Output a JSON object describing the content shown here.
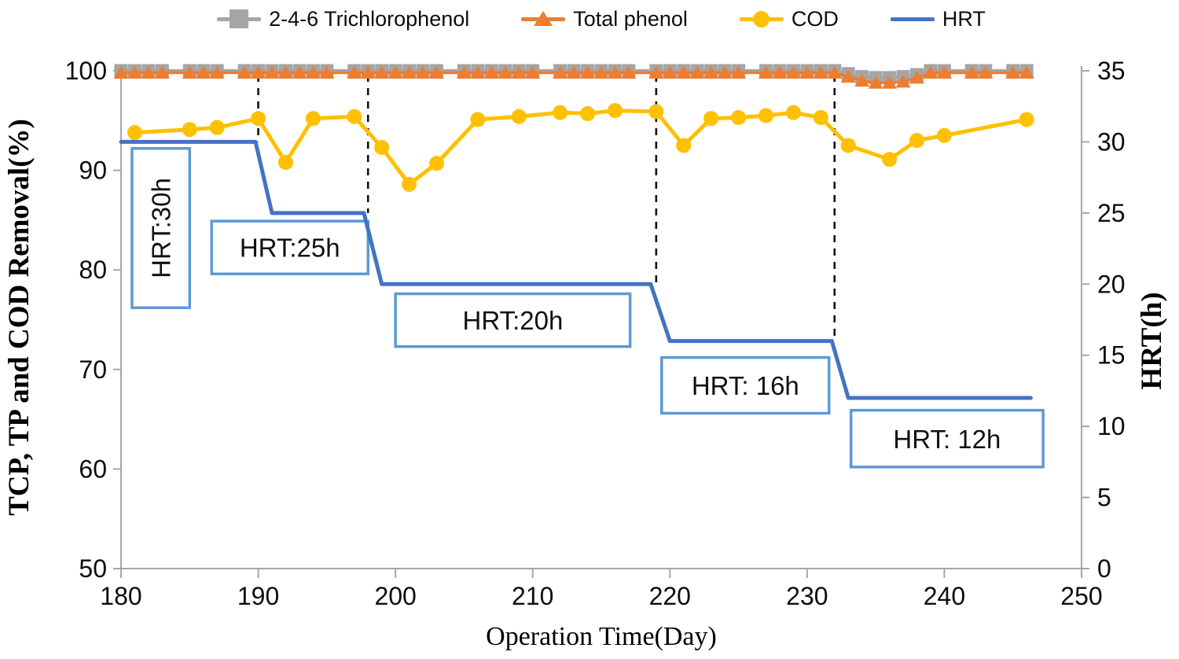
{
  "legend": {
    "items": [
      {
        "label": "2-4-6 Trichlorophenol",
        "marker": "square",
        "color": "#A5A5A5"
      },
      {
        "label": "Total phenol",
        "marker": "triangle",
        "color": "#ED7D31"
      },
      {
        "label": "COD",
        "marker": "circle",
        "color": "#FFC000"
      },
      {
        "label": "HRT",
        "marker": "line",
        "color": "#4472C4"
      }
    ]
  },
  "axes": {
    "left": {
      "title": "TCP, TP and COD Removal(%)",
      "ticks": [
        100,
        90,
        80,
        70,
        60,
        50
      ]
    },
    "right": {
      "title": "HRT(h)",
      "ticks": [
        35,
        30,
        25,
        20,
        15,
        10,
        5,
        0
      ]
    },
    "bottom": {
      "title": "Operation Time(Day)",
      "ticks": [
        180,
        190,
        200,
        210,
        220,
        230,
        240,
        250
      ]
    }
  },
  "chart_data": {
    "type": "line",
    "title": "",
    "xlabel": "Operation Time(Day)",
    "ylabel_left": "TCP, TP and COD Removal(%)",
    "ylabel_right": "HRT(h)",
    "xlim": [
      180,
      250
    ],
    "ylim_left": [
      50,
      100
    ],
    "ylim_right": [
      0,
      35
    ],
    "grid": false,
    "legend_position": "top",
    "series": [
      {
        "name": "2-4-6 Trichlorophenol",
        "color": "#A5A5A5",
        "marker": "square",
        "axis": "left",
        "x": [
          180,
          181,
          182,
          183,
          185,
          186,
          187,
          189,
          190,
          191,
          192,
          193,
          194,
          195,
          197,
          198,
          199,
          200,
          201,
          202,
          203,
          205,
          206,
          207,
          208,
          209,
          210,
          212,
          213,
          214,
          215,
          216,
          217,
          219,
          220,
          221,
          222,
          223,
          224,
          225,
          227,
          228,
          229,
          230,
          231,
          232,
          233,
          234,
          235,
          236,
          237,
          238,
          239,
          240,
          242,
          243,
          245,
          246
        ],
        "y": [
          100,
          100,
          100,
          100,
          100,
          100,
          100,
          100,
          100,
          100,
          100,
          100,
          100,
          100,
          100,
          100,
          100,
          100,
          100,
          100,
          100,
          100,
          100,
          100,
          100,
          100,
          100,
          100,
          100,
          100,
          100,
          100,
          100,
          100,
          100,
          100,
          100,
          100,
          100,
          100,
          100,
          100,
          100,
          100,
          100,
          100,
          99.7,
          99.4,
          99.3,
          99.3,
          99.4,
          99.6,
          100,
          100,
          100,
          100,
          100,
          100
        ]
      },
      {
        "name": "Total phenol",
        "color": "#ED7D31",
        "marker": "triangle",
        "axis": "left",
        "x": [
          180,
          181,
          182,
          183,
          185,
          186,
          187,
          189,
          190,
          191,
          192,
          193,
          194,
          195,
          197,
          198,
          199,
          200,
          201,
          202,
          203,
          205,
          206,
          207,
          208,
          209,
          210,
          212,
          213,
          214,
          215,
          216,
          217,
          219,
          220,
          221,
          222,
          223,
          224,
          225,
          227,
          228,
          229,
          230,
          231,
          232,
          233,
          234,
          235,
          236,
          237,
          238,
          239,
          240,
          242,
          243,
          245,
          246
        ],
        "y": [
          99.8,
          99.8,
          99.8,
          99.8,
          99.8,
          99.8,
          99.8,
          99.8,
          99.8,
          99.8,
          99.8,
          99.8,
          99.8,
          99.8,
          99.8,
          99.8,
          99.8,
          99.8,
          99.8,
          99.8,
          99.8,
          99.8,
          99.8,
          99.8,
          99.8,
          99.8,
          99.8,
          99.8,
          99.8,
          99.8,
          99.8,
          99.8,
          99.8,
          99.8,
          99.8,
          99.8,
          99.8,
          99.8,
          99.8,
          99.8,
          99.8,
          99.8,
          99.8,
          99.8,
          99.8,
          99.8,
          99.4,
          99.0,
          98.8,
          98.8,
          98.9,
          99.3,
          99.8,
          99.8,
          99.8,
          99.8,
          99.8,
          99.8
        ]
      },
      {
        "name": "COD",
        "color": "#FFC000",
        "marker": "circle",
        "axis": "left",
        "x": [
          181,
          185,
          187,
          190,
          192,
          194,
          197,
          199,
          201,
          203,
          206,
          209,
          212,
          214,
          216,
          219,
          221,
          223,
          225,
          227,
          229,
          231,
          233,
          236,
          238,
          240,
          246
        ],
        "y": [
          93.8,
          94.1,
          94.3,
          95.2,
          90.8,
          95.2,
          95.4,
          92.3,
          88.6,
          90.7,
          95.1,
          95.4,
          95.8,
          95.7,
          96.0,
          95.9,
          92.5,
          95.2,
          95.3,
          95.5,
          95.8,
          95.3,
          92.5,
          91.1,
          93.0,
          93.5,
          95.1
        ]
      },
      {
        "name": "HRT",
        "color": "#4472C4",
        "marker": "none",
        "axis": "right",
        "x": [
          180,
          189.8,
          191,
          197.7,
          199,
          218.6,
          220,
          231.8,
          233,
          246.3
        ],
        "y": [
          30,
          30,
          25,
          25,
          20,
          20,
          16,
          16,
          12,
          12
        ]
      }
    ],
    "dashed_lines": [
      {
        "day": 190,
        "hrt_end": 30
      },
      {
        "day": 198,
        "hrt_end": 25
      },
      {
        "day": 219,
        "hrt_end": 20
      },
      {
        "day": 232,
        "hrt_end": 16
      }
    ],
    "annotations": [
      {
        "label": "HRT:30h",
        "day_start": 180.8,
        "day_end": 185.0,
        "pct_top": 92.2,
        "pct_bottom": 76.2,
        "vertical": true
      },
      {
        "label": "HRT:25h",
        "day_start": 186.6,
        "day_end": 198.0,
        "pct_top": 84.9,
        "pct_bottom": 79.6,
        "vertical": false
      },
      {
        "label": "HRT:20h",
        "day_start": 200.0,
        "day_end": 217.1,
        "pct_top": 77.6,
        "pct_bottom": 72.3,
        "vertical": false
      },
      {
        "label": "HRT: 16h",
        "day_start": 219.4,
        "day_end": 231.6,
        "pct_top": 71.2,
        "pct_bottom": 65.6,
        "vertical": false
      },
      {
        "label": "HRT: 12h",
        "day_start": 233.2,
        "day_end": 247.2,
        "pct_top": 65.9,
        "pct_bottom": 60.2,
        "vertical": false
      }
    ],
    "annotation_border_color": "#5B9BD5",
    "axis_line_color": "#A6A6A6",
    "dashed_line_color": "#111111"
  }
}
